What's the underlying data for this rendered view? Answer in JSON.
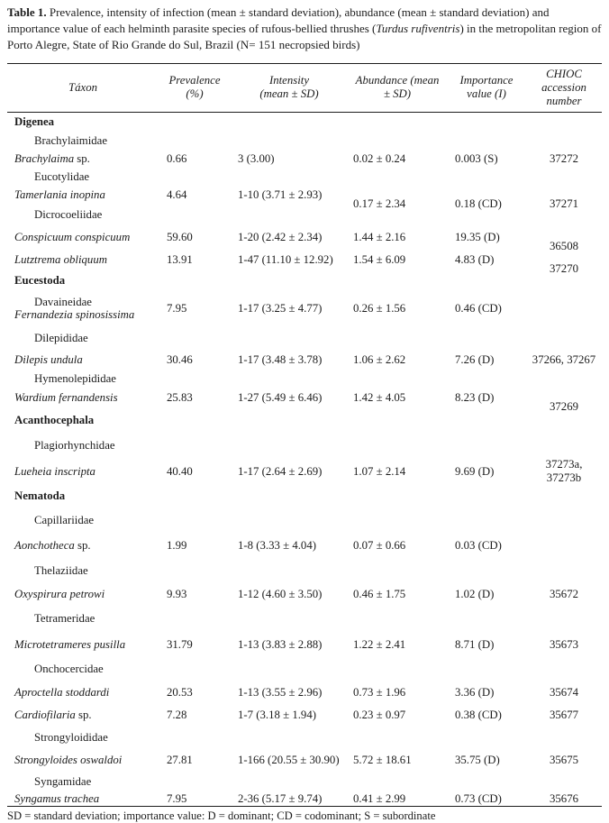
{
  "caption": {
    "parts": [
      {
        "style": "bold",
        "text": "Table 1."
      },
      {
        "style": "normal",
        "text": " Prevalence, intensity of infection (mean ± standard deviation), abundance (mean ± standard deviation) and importance value of each helminth parasite species of rufous-bellied thrushes ("
      },
      {
        "style": "italic",
        "text": "Turdus rufiventris"
      },
      {
        "style": "normal",
        "text": ") in the metropolitan region of Porto Alegre, State of Rio Grande do Sul, Brazil (N= 151 necropsied birds)"
      }
    ]
  },
  "columns": [
    "Táxon",
    "Prevalence\n(%)",
    "Intensity\n(mean ± SD)",
    "Abundance (mean\n± SD)",
    "Importance\nvalue (I)",
    "CHIOC\naccession\nnumber"
  ],
  "rows": [
    {
      "type": "class",
      "taxon": "Digenea"
    },
    {
      "type": "family",
      "taxon": "Brachylaimidae"
    },
    {
      "type": "species",
      "taxon": "Brachylaima",
      "suffix": " sp.",
      "prevalence": "0.66",
      "intensity": "3 (3.00)",
      "abundance": "0.02 ± 0.24",
      "importance": "0.003 (S)",
      "chioc": "37272"
    },
    {
      "type": "family",
      "taxon": "Eucotylidae"
    },
    {
      "type": "species",
      "taxon": "Tamerlania inopina",
      "prevalence": "4.64",
      "intensity": "1-10 (3.71 ± 2.93)",
      "abundance": "0.17 ± 2.34",
      "importance": "0.18 (CD)",
      "chioc": "37271"
    },
    {
      "type": "family",
      "taxon": "Dicrocoeliidae"
    },
    {
      "type": "species",
      "taxon": "Conspicuum conspicuum",
      "prevalence": "59.60",
      "intensity": "1-20 (2.42 ± 2.34)",
      "abundance": "1.44 ± 2.16",
      "importance": "19.35 (D)",
      "chioc": "36508"
    },
    {
      "type": "species",
      "taxon": "Lutztrema obliquum",
      "prevalence": "13.91",
      "intensity": "1-47 (11.10 ± 12.92)",
      "abundance": "1.54 ± 6.09",
      "importance": "4.83 (D)",
      "chioc": "37270"
    },
    {
      "type": "class",
      "taxon": "Eucestoda"
    },
    {
      "type": "family-species",
      "family": "Davaineidae",
      "taxon": "Fernandezia spinosissima",
      "prevalence": "7.95",
      "intensity": "1-17 (3.25 ± 4.77)",
      "abundance": "0.26 ± 1.56",
      "importance": "0.46 (CD)"
    },
    {
      "type": "family",
      "taxon": "Dilepididae"
    },
    {
      "type": "species",
      "taxon": "Dilepis undula",
      "prevalence": "30.46",
      "intensity": "1-17 (3.48 ± 3.78)",
      "abundance": "1.06 ± 2.62",
      "importance": "7.26 (D)",
      "chioc": "37266, 37267"
    },
    {
      "type": "family",
      "taxon": "Hymenolepididae"
    },
    {
      "type": "species",
      "taxon": "Wardium fernandensis",
      "prevalence": "25.83",
      "intensity": "1-27 (5.49 ± 6.46)",
      "abundance": "1.42 ± 4.05",
      "importance": "8.23 (D)",
      "chioc": "37269"
    },
    {
      "type": "class",
      "taxon": "Acanthocephala"
    },
    {
      "type": "family",
      "taxon": "Plagiorhynchidae"
    },
    {
      "type": "species",
      "taxon": "Lueheia inscripta",
      "prevalence": "40.40",
      "intensity": "1-17 (2.64 ± 2.69)",
      "abundance": "1.07 ± 2.14",
      "importance": "9.69 (D)",
      "chioc": "37273a,\n37273b"
    },
    {
      "type": "class",
      "taxon": "Nematoda"
    },
    {
      "type": "family",
      "taxon": "Capillariidae"
    },
    {
      "type": "species",
      "taxon": "Aonchotheca",
      "suffix": " sp.",
      "prevalence": "1.99",
      "intensity": "1-8 (3.33 ± 4.04)",
      "abundance": "0.07 ± 0.66",
      "importance": "0.03 (CD)"
    },
    {
      "type": "family",
      "taxon": "Thelaziidae"
    },
    {
      "type": "species",
      "taxon": "Oxyspirura petrowi",
      "prevalence": "9.93",
      "intensity": "1-12 (4.60 ± 3.50)",
      "abundance": "0.46 ± 1.75",
      "importance": "1.02 (D)",
      "chioc": "35672"
    },
    {
      "type": "family",
      "taxon": "Tetrameridae"
    },
    {
      "type": "species",
      "taxon": "Microtetrameres pusilla",
      "prevalence": "31.79",
      "intensity": "1-13 (3.83 ± 2.88)",
      "abundance": "1.22 ± 2.41",
      "importance": "8.71 (D)",
      "chioc": "35673"
    },
    {
      "type": "family",
      "taxon": "Onchocercidae"
    },
    {
      "type": "species",
      "taxon": "Aproctella stoddardi",
      "prevalence": "20.53",
      "intensity": "1-13 (3.55 ± 2.96)",
      "abundance": "0.73 ± 1.96",
      "importance": "3.36 (D)",
      "chioc": "35674"
    },
    {
      "type": "species",
      "taxon": "Cardiofilaria",
      "suffix": " sp.",
      "prevalence": "7.28",
      "intensity": "1-7 (3.18 ± 1.94)",
      "abundance": "0.23 ± 0.97",
      "importance": "0.38 (CD)",
      "chioc": "35677"
    },
    {
      "type": "family",
      "taxon": "Strongyloididae"
    },
    {
      "type": "species",
      "taxon": "Strongyloides oswaldoi",
      "prevalence": "27.81",
      "intensity": "1-166 (20.55 ± 30.90)",
      "abundance": "5.72 ± 18.61",
      "importance": "35.75 (D)",
      "chioc": "35675"
    },
    {
      "type": "family",
      "taxon": "Syngamidae"
    },
    {
      "type": "species",
      "taxon": "Syngamus trachea",
      "prevalence": "7.95",
      "intensity": "2-36 (5.17 ± 9.74)",
      "abundance": "0.41 ± 2.99",
      "importance": "0.73 (CD)",
      "chioc": "35676"
    }
  ],
  "footnote": "SD = standard deviation; importance value: D = dominant; CD = codominant; S = subordinate"
}
